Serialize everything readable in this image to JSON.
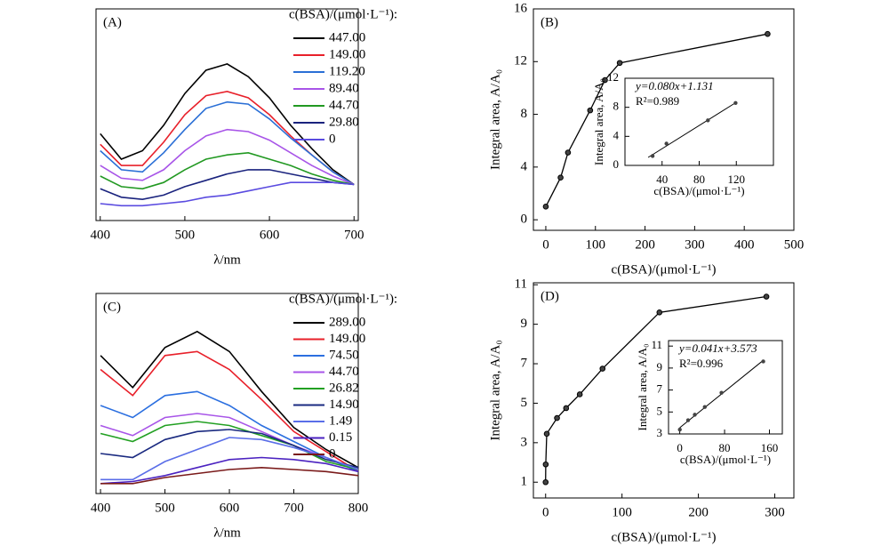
{
  "chart_data": [
    {
      "type": "line",
      "label": "(A)",
      "legend_title": "c(BSA)/(μmol·L⁻¹):",
      "x_label": "λ/nm",
      "x": [
        400,
        425,
        450,
        475,
        500,
        525,
        550,
        575,
        600,
        625,
        650,
        675,
        700
      ],
      "xlim": [
        395,
        705
      ],
      "xticks": [
        400,
        500,
        600,
        700
      ],
      "ylim": [
        0,
        100
      ],
      "series": [
        {
          "name": "447.00",
          "color": "#000000",
          "values": [
            41,
            29,
            33,
            45,
            60,
            71,
            74,
            68,
            58,
            45,
            34,
            24,
            17
          ]
        },
        {
          "name": "149.00",
          "color": "#e8202a",
          "values": [
            36,
            26,
            26,
            37,
            50,
            59,
            61,
            58,
            50,
            40,
            31,
            23,
            17
          ]
        },
        {
          "name": "119.20",
          "color": "#2a6fd6",
          "values": [
            33,
            24,
            23,
            32,
            43,
            53,
            56,
            55,
            48,
            39,
            31,
            23,
            17
          ]
        },
        {
          "name": "89.40",
          "color": "#a855e8",
          "values": [
            26,
            20,
            19,
            24,
            33,
            40,
            43,
            42,
            38,
            32,
            26,
            21,
            17
          ]
        },
        {
          "name": "44.70",
          "color": "#229922",
          "values": [
            21,
            16,
            15,
            18,
            24,
            29,
            31,
            32,
            29,
            26,
            22,
            19,
            17
          ]
        },
        {
          "name": "29.80",
          "color": "#1a237e",
          "values": [
            15,
            11,
            10,
            12,
            16,
            19,
            22,
            24,
            24,
            22,
            20,
            18,
            17
          ]
        },
        {
          "name": "0",
          "color": "#5a4be0",
          "values": [
            8,
            7,
            7,
            8,
            9,
            11,
            12,
            14,
            16,
            18,
            18,
            18,
            17
          ]
        }
      ]
    },
    {
      "type": "line",
      "markers": true,
      "label": "(B)",
      "x_label": "c(BSA)/(μmol·L⁻¹)",
      "y_label": "Integral area, A/A₀",
      "x": [
        0,
        29.8,
        44.7,
        89.4,
        119.2,
        149,
        447
      ],
      "values": [
        1.0,
        3.2,
        5.1,
        8.3,
        10.6,
        11.9,
        14.1
      ],
      "xlim": [
        -25,
        500
      ],
      "xticks": [
        0,
        100,
        200,
        300,
        400,
        500
      ],
      "ylim": [
        -0.8,
        16
      ],
      "yticks": [
        0,
        4,
        8,
        12,
        16
      ],
      "inset": {
        "type": "scatter",
        "x_label": "c(BSA)/(μmol·L⁻¹)",
        "y_label": "Integral area, A/A₀",
        "equation": "y=0.080x+1.131",
        "r2": "R²=0.989",
        "x": [
          29.8,
          44.7,
          89.4,
          119.2
        ],
        "values": [
          1.3,
          3.0,
          6.2,
          8.6
        ],
        "fit_x": [
          25,
          120
        ],
        "fit_y": [
          1.1,
          8.7
        ],
        "xlim": [
          0,
          160
        ],
        "xticks": [
          40,
          80,
          120
        ],
        "ylim": [
          0,
          12
        ],
        "yticks": [
          0,
          4,
          8,
          12
        ]
      }
    },
    {
      "type": "line",
      "label": "(C)",
      "legend_title": "c(BSA)/(μmol·L⁻¹):",
      "x_label": "λ/nm",
      "x": [
        400,
        450,
        500,
        550,
        600,
        650,
        700,
        750,
        800
      ],
      "xlim": [
        393,
        800
      ],
      "xticks": [
        400,
        500,
        600,
        700,
        800
      ],
      "ylim": [
        0,
        100
      ],
      "series": [
        {
          "name": "289.00",
          "color": "#000000",
          "values": [
            69,
            53,
            73,
            81,
            71,
            51,
            33,
            22,
            13
          ]
        },
        {
          "name": "149.00",
          "color": "#e8202a",
          "values": [
            62,
            49,
            69,
            71,
            62,
            47,
            31,
            21,
            11
          ]
        },
        {
          "name": "74.50",
          "color": "#2b6fe0",
          "values": [
            44,
            38,
            49,
            51,
            44,
            34,
            26,
            18,
            11
          ]
        },
        {
          "name": "44.70",
          "color": "#a855e8",
          "values": [
            34,
            29,
            38,
            40,
            38,
            31,
            24,
            18,
            12
          ]
        },
        {
          "name": "26.82",
          "color": "#22a022",
          "values": [
            30,
            26,
            34,
            36,
            34,
            29,
            24,
            16,
            12
          ]
        },
        {
          "name": "14.90",
          "color": "#1a2a80",
          "values": [
            20,
            18,
            27,
            31,
            32,
            30,
            24,
            17,
            13
          ]
        },
        {
          "name": "1.49",
          "color": "#5a6ee8",
          "values": [
            7,
            7,
            16,
            22,
            28,
            27,
            23,
            18,
            12
          ]
        },
        {
          "name": "0.15",
          "color": "#4b22c0",
          "values": [
            5,
            6,
            9,
            13,
            17,
            18,
            17,
            15,
            11
          ]
        },
        {
          "name": "0",
          "color": "#7a1a1a",
          "values": [
            5,
            5,
            8,
            10,
            12,
            13,
            12,
            11,
            9
          ]
        }
      ]
    },
    {
      "type": "line",
      "markers": true,
      "label": "(D)",
      "x_label": "c(BSA)/(μmol·L⁻¹)",
      "y_label": "Integral area, A/A₀",
      "x": [
        0,
        0.15,
        1.49,
        14.9,
        26.82,
        44.7,
        74.5,
        149,
        289
      ],
      "values": [
        1.0,
        1.9,
        3.45,
        4.25,
        4.75,
        5.45,
        6.75,
        9.6,
        10.4
      ],
      "xlim": [
        -16,
        325
      ],
      "xticks": [
        0,
        100,
        200,
        300
      ],
      "ylim": [
        0.2,
        11.1
      ],
      "yticks": [
        1,
        3,
        5,
        7,
        9,
        11
      ],
      "inset": {
        "type": "scatter",
        "x_label": "c(BSA)/(μmol·L⁻¹)",
        "y_label": "Integral area, A/A₀",
        "equation": "y=0.041x+3.573",
        "r2": "R²=0.996",
        "x": [
          0.15,
          14.9,
          26.82,
          44.7,
          74.5,
          149
        ],
        "values": [
          3.4,
          4.25,
          4.75,
          5.45,
          6.75,
          9.6
        ],
        "fit_x": [
          0,
          149
        ],
        "fit_y": [
          3.57,
          9.7
        ],
        "xlim": [
          -20,
          183
        ],
        "xticks": [
          0,
          80,
          160
        ],
        "ylim": [
          3,
          11.5
        ],
        "yticks": [
          3,
          5,
          7,
          9,
          11
        ]
      }
    }
  ]
}
